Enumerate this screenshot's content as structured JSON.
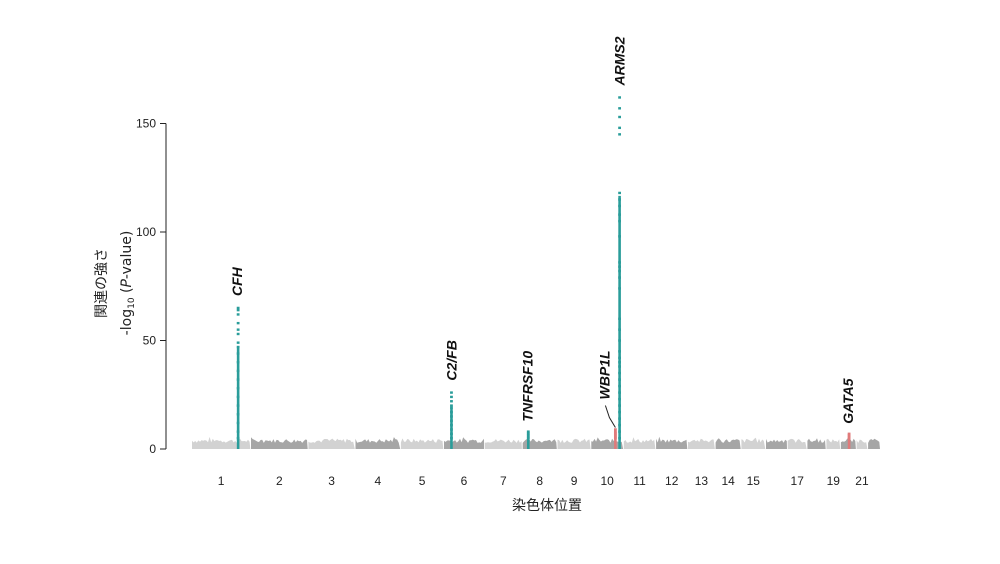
{
  "chart_data": {
    "type": "scatter",
    "subtype": "manhattan",
    "title": "",
    "xlabel": "染色体位置",
    "ylabel_main": "関連の強さ",
    "ylabel_sub": {
      "prefix": "-log",
      "subscript": "10",
      "open": " (",
      "p": "P",
      "suffix": "-value)"
    },
    "ylim": [
      0,
      160
    ],
    "yticks": [
      0,
      50,
      100,
      150
    ],
    "grid": false,
    "legend": "none",
    "colors": {
      "baseline_light": "#d2d2d2",
      "baseline_dark": "#a6a6a6",
      "hit": "#2a9d9a",
      "suggestive": "#e07a7a",
      "text": "#222222"
    },
    "chromosome_labels": [
      "1",
      "2",
      "3",
      "4",
      "5",
      "6",
      "7",
      "8",
      "9",
      "10",
      "11",
      "12",
      "13",
      "14",
      "15",
      "17",
      "19",
      "21"
    ],
    "chromosomes": [
      {
        "chr": "1",
        "start": 0,
        "end": 249
      },
      {
        "chr": "2",
        "start": 252,
        "end": 494
      },
      {
        "chr": "3",
        "start": 497,
        "end": 695
      },
      {
        "chr": "4",
        "start": 698,
        "end": 889
      },
      {
        "chr": "5",
        "start": 892,
        "end": 1073
      },
      {
        "chr": "6",
        "start": 1076,
        "end": 1247
      },
      {
        "chr": "7",
        "start": 1250,
        "end": 1409
      },
      {
        "chr": "8",
        "start": 1412,
        "end": 1558
      },
      {
        "chr": "9",
        "start": 1561,
        "end": 1702
      },
      {
        "chr": "10",
        "start": 1705,
        "end": 1841
      },
      {
        "chr": "11",
        "start": 1844,
        "end": 1979
      },
      {
        "chr": "12",
        "start": 1982,
        "end": 2115
      },
      {
        "chr": "13",
        "start": 2118,
        "end": 2233
      },
      {
        "chr": "14",
        "start": 2236,
        "end": 2343
      },
      {
        "chr": "15",
        "start": 2346,
        "end": 2448
      },
      {
        "chr": "16",
        "start": 2451,
        "end": 2541
      },
      {
        "chr": "17",
        "start": 2544,
        "end": 2625
      },
      {
        "chr": "18",
        "start": 2628,
        "end": 2706
      },
      {
        "chr": "19",
        "start": 2709,
        "end": 2768
      },
      {
        "chr": "20",
        "start": 2771,
        "end": 2835
      },
      {
        "chr": "21",
        "start": 2838,
        "end": 2884
      },
      {
        "chr": "22",
        "start": 2887,
        "end": 2938
      }
    ],
    "loci": [
      {
        "gene": "CFH",
        "chr": "1",
        "pos": 197,
        "color": "hit",
        "max": 65,
        "points": [
          65,
          64,
          62,
          58,
          55,
          53,
          49,
          47,
          44,
          40,
          36,
          32,
          28,
          24,
          20,
          16,
          12,
          8,
          5
        ]
      },
      {
        "gene": "C2/FB",
        "chr": "6",
        "pos": 1108,
        "color": "hit",
        "max": 26,
        "points": [
          26,
          24,
          22,
          20,
          19,
          17,
          15,
          13,
          11,
          9,
          7,
          5
        ]
      },
      {
        "gene": "TNFRSF10",
        "chr": "8",
        "pos": 1436,
        "color": "hit",
        "max": 8,
        "points": [
          8,
          7,
          6,
          5
        ]
      },
      {
        "gene": "WBP1L",
        "chr": "10",
        "pos": 1808,
        "color": "suggestive",
        "max": 9,
        "points": [
          9,
          8,
          7,
          6,
          5
        ]
      },
      {
        "gene": "ARMS2",
        "chr": "10",
        "pos": 1826,
        "color": "hit",
        "max": 162,
        "points": [
          162,
          157,
          153,
          148,
          145,
          118,
          115,
          112,
          108,
          105,
          98,
          86,
          84,
          82,
          79,
          74,
          60,
          55,
          50,
          45,
          42,
          40,
          38,
          35,
          32,
          29,
          26,
          23,
          20,
          17,
          14,
          11,
          8,
          5
        ]
      },
      {
        "gene": "GATA5",
        "chr": "20",
        "pos": 2806,
        "color": "suggestive",
        "max": 7,
        "points": [
          7,
          6,
          5
        ]
      }
    ]
  }
}
